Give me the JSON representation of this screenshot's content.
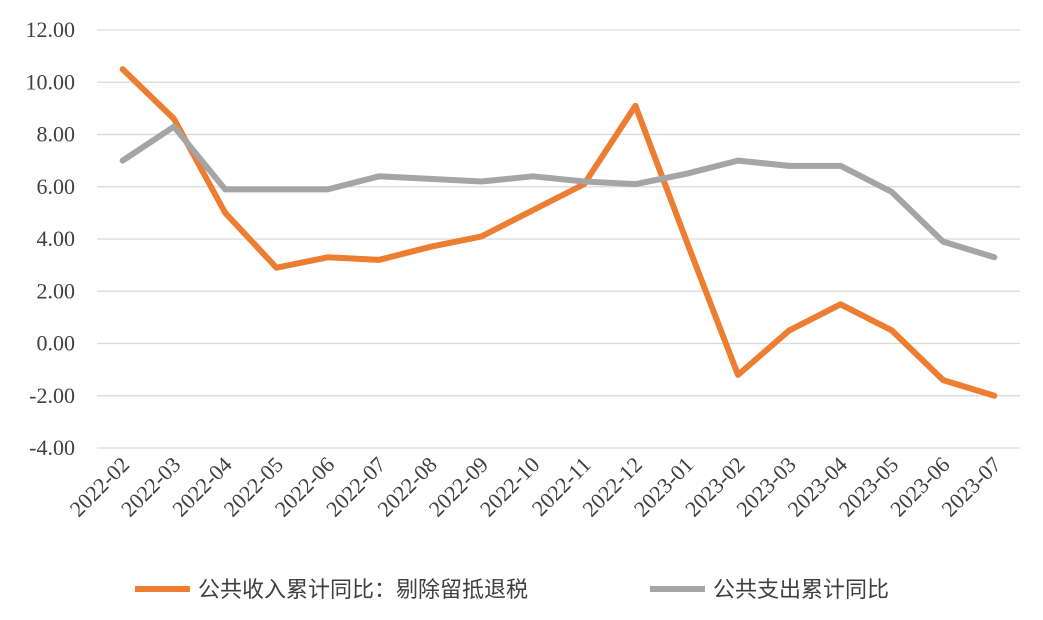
{
  "chart_data": {
    "type": "line",
    "title": "",
    "xlabel": "",
    "ylabel": "",
    "categories": [
      "2022-02",
      "2022-03",
      "2022-04",
      "2022-05",
      "2022-06",
      "2022-07",
      "2022-08",
      "2022-09",
      "2022-10",
      "2022-11",
      "2022-12",
      "2023-01",
      "2023-02",
      "2023-03",
      "2023-04",
      "2023-05",
      "2023-06",
      "2023-07"
    ],
    "y_ticks": [
      "-4.00",
      "-2.00",
      "0.00",
      "2.00",
      "4.00",
      "6.00",
      "8.00",
      "10.00",
      "12.00"
    ],
    "ylim": [
      -4,
      12
    ],
    "grid": true,
    "legend_position": "bottom",
    "series": [
      {
        "name": "公共收入累计同比：剔除留抵退税",
        "color": "#ED7D31",
        "values": [
          10.5,
          8.6,
          5.0,
          2.9,
          3.3,
          3.2,
          3.7,
          4.1,
          5.1,
          6.1,
          9.1,
          3.9,
          -1.2,
          0.5,
          1.5,
          0.5,
          -1.4,
          -2.0
        ]
      },
      {
        "name": "公共支出累计同比",
        "color": "#A5A5A5",
        "values": [
          7.0,
          8.3,
          5.9,
          5.9,
          5.9,
          6.4,
          6.3,
          6.2,
          6.4,
          6.2,
          6.1,
          6.5,
          7.0,
          6.8,
          6.8,
          5.8,
          3.9,
          3.3
        ]
      }
    ]
  }
}
